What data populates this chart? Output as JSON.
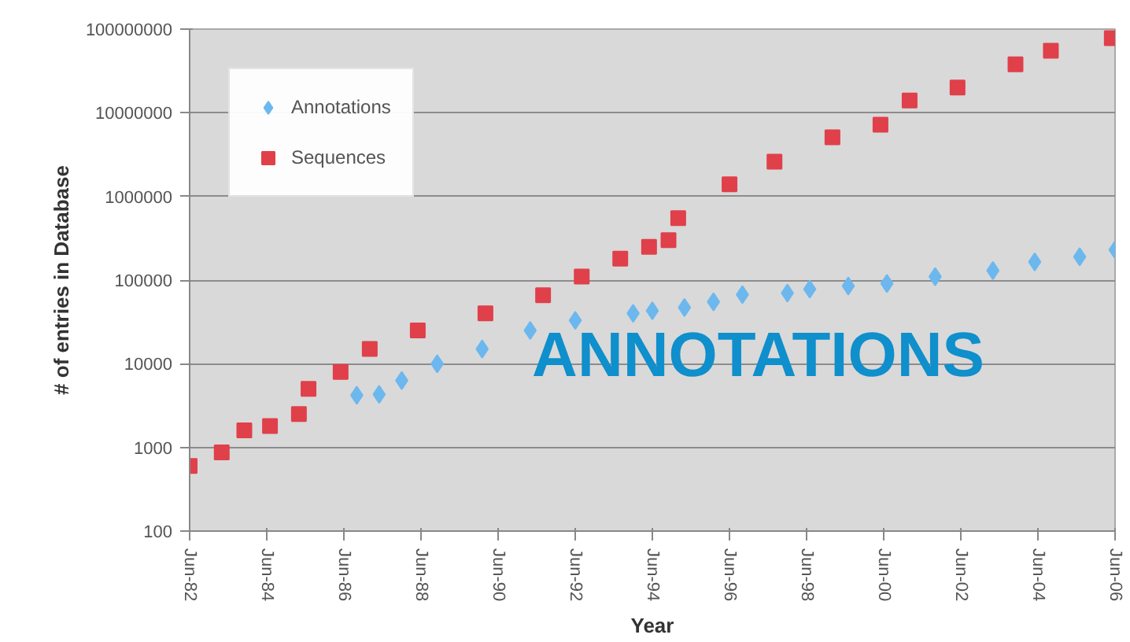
{
  "chart_data": {
    "type": "scatter",
    "xlabel": "Year",
    "ylabel": "# of entries in Database",
    "annotations": [
      "ANNOTATIONS"
    ],
    "log": "y",
    "grid": "y",
    "legend": "top left",
    "xlim": [
      "1982-06",
      "2006-06"
    ],
    "xticks": [
      {
        "value": "1982-06",
        "label": "Jun-82"
      },
      {
        "value": "1984-06",
        "label": "Jun-84"
      },
      {
        "value": "1986-06",
        "label": "Jun-86"
      },
      {
        "value": "1988-06",
        "label": "Jun-88"
      },
      {
        "value": "1990-06",
        "label": "Jun-90"
      },
      {
        "value": "1992-06",
        "label": "Jun-92"
      },
      {
        "value": "1994-06",
        "label": "Jun-94"
      },
      {
        "value": "1996-06",
        "label": "Jun-96"
      },
      {
        "value": "1998-06",
        "label": "Jun-98"
      },
      {
        "value": "2000-06",
        "label": "Jun-00"
      },
      {
        "value": "2002-06",
        "label": "Jun-02"
      },
      {
        "value": "2004-06",
        "label": "Jun-04"
      },
      {
        "value": "2006-06",
        "label": "Jun-06"
      }
    ],
    "ylim": [
      100,
      100000000
    ],
    "yticks": [
      100,
      1000,
      10000,
      100000,
      1000000,
      10000000,
      100000000
    ],
    "series": [
      {
        "name": "Annotations",
        "color": "#6cb8ee",
        "marker": "diamond",
        "x": [
          "1986-10",
          "1987-05",
          "1987-12",
          "1988-11",
          "1990-01",
          "1991-04",
          "1992-06",
          "1993-12",
          "1994-06",
          "1995-04",
          "1996-01",
          "1996-10",
          "1997-12",
          "1998-07",
          "1999-07",
          "2000-07",
          "2001-10",
          "2003-04",
          "2004-05",
          "2005-07",
          "2006-06"
        ],
        "values": [
          4200,
          4300,
          6300,
          10000,
          15000,
          25000,
          33000,
          40000,
          43000,
          47000,
          55000,
          67000,
          70000,
          78000,
          85000,
          91000,
          110000,
          130000,
          165000,
          190000,
          230000
        ]
      },
      {
        "name": "Sequences",
        "color": "#e0404a",
        "marker": "square",
        "x": [
          "1982-06",
          "1983-04",
          "1983-11",
          "1984-07",
          "1985-04",
          "1985-07",
          "1986-05",
          "1987-02",
          "1988-05",
          "1990-02",
          "1991-08",
          "1992-08",
          "1993-08",
          "1994-05",
          "1994-11",
          "1995-02",
          "1996-06",
          "1997-08",
          "1999-02",
          "2000-05",
          "2001-02",
          "2002-05",
          "2003-11",
          "2004-10",
          "2006-05"
        ],
        "values": [
          600,
          870,
          1600,
          1800,
          2500,
          5000,
          8000,
          15000,
          25000,
          40000,
          66000,
          110000,
          180000,
          250000,
          300000,
          550000,
          1400000,
          2600000,
          5100000,
          7200000,
          14000000,
          20000000,
          38000000,
          55000000,
          78000000
        ]
      }
    ]
  }
}
